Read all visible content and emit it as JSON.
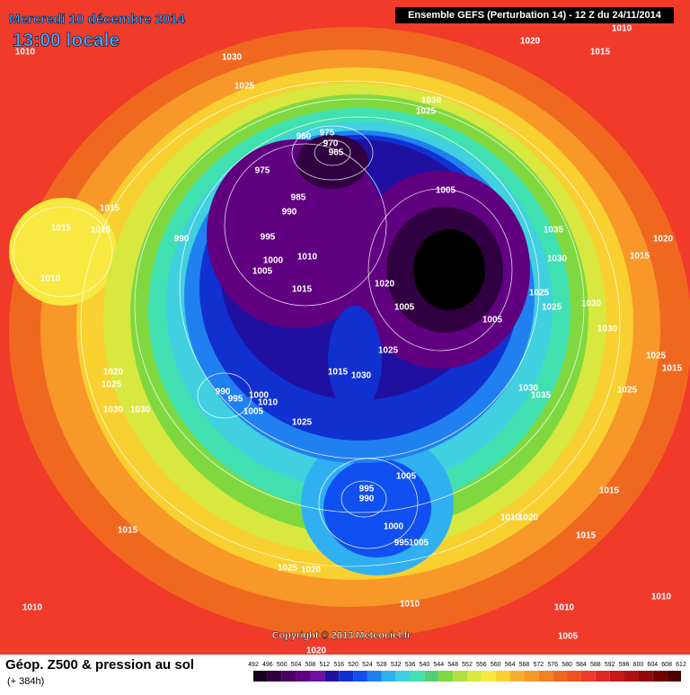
{
  "header": {
    "date": "Mercredi 10 décembre 2014",
    "time": "13:00 locale",
    "run": "Ensemble GEFS (Perturbation 14)  -  12 Z du 24/11/2014"
  },
  "copyright": "Copyright © 2013 Meteociel.fr",
  "footer": {
    "title": "Géop. Z500 & pression au sol",
    "subtitle": "(+ 384h)"
  },
  "isobar_labels": [
    "1010",
    "1030",
    "1025",
    "1020",
    "1015",
    "1010",
    "1030",
    "1025",
    "980",
    "975",
    "970",
    "965",
    "975",
    "985",
    "990",
    "1005",
    "1015",
    "1015",
    "1015",
    "990",
    "995",
    "1000",
    "1005",
    "1010",
    "1020",
    "1015",
    "1035",
    "1020",
    "1015",
    "1030",
    "1010",
    "1025",
    "1025",
    "1030",
    "1005",
    "1005",
    "1030",
    "1025",
    "1025",
    "1015",
    "1015",
    "1030",
    "1030",
    "1035",
    "1025",
    "1020",
    "1025",
    "990",
    "995",
    "1000",
    "1010",
    "1005",
    "1030",
    "1030",
    "1025",
    "1005",
    "995",
    "990",
    "1015",
    "1000",
    "1010",
    "1020",
    "995",
    "1005",
    "1015",
    "1015",
    "1025",
    "1020",
    "1010",
    "1010",
    "1010",
    "1010",
    "1005",
    "1020"
  ],
  "scale": {
    "values": [
      492,
      496,
      500,
      504,
      508,
      512,
      516,
      520,
      524,
      528,
      532,
      536,
      540,
      544,
      548,
      552,
      556,
      560,
      564,
      568,
      572,
      576,
      580,
      584,
      588,
      592,
      596,
      600,
      604,
      608,
      612
    ],
    "colors": [
      "#1a0020",
      "#300040",
      "#4a0060",
      "#600080",
      "#7010a0",
      "#2010a0",
      "#1030d0",
      "#1050f0",
      "#2080f0",
      "#30b0f0",
      "#40d0e0",
      "#40e0b0",
      "#50d070",
      "#80d840",
      "#b0e040",
      "#d8e840",
      "#f8e840",
      "#f8d030",
      "#f8b030",
      "#f89828",
      "#f48020",
      "#f06820",
      "#f05020",
      "#f03a2a",
      "#e02828",
      "#c81818",
      "#b01010",
      "#900808",
      "#700000",
      "#500000"
    ]
  }
}
